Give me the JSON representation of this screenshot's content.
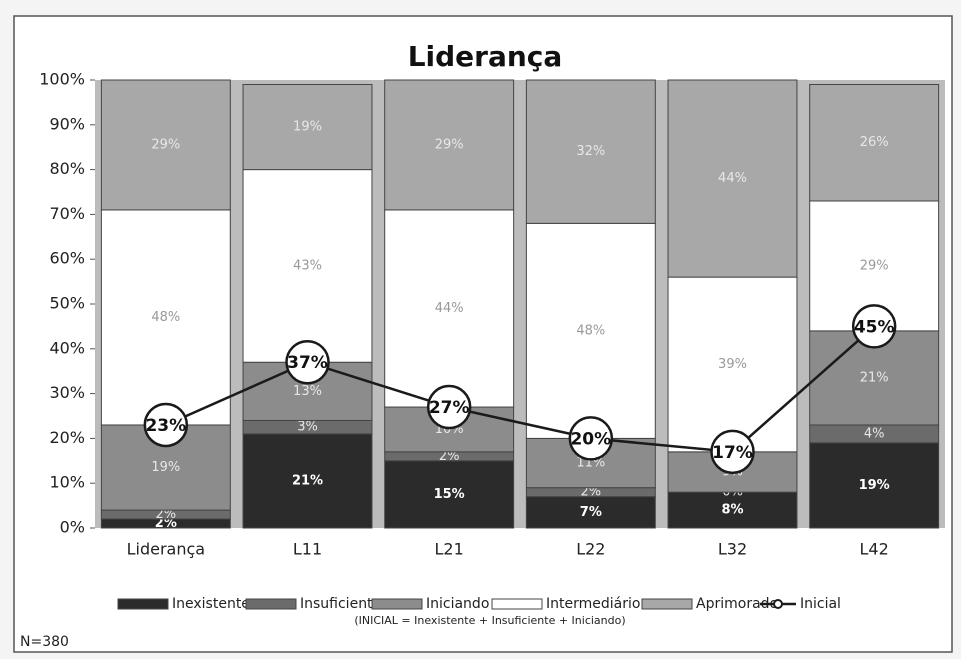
{
  "chart_data": {
    "type": "bar",
    "stacked": true,
    "title": "Liderança",
    "categories": [
      "Liderança",
      "L11",
      "L21",
      "L22",
      "L32",
      "L42"
    ],
    "series": [
      {
        "name": "Inexistente",
        "color": "#2b2b2b",
        "values": [
          2,
          21,
          15,
          7,
          8,
          19
        ],
        "value_labels": [
          "2%",
          "21%",
          "15%",
          "7%",
          "8%",
          "19%"
        ]
      },
      {
        "name": "Insuficiente",
        "color": "#6b6b6b",
        "values": [
          2,
          3,
          2,
          2,
          0,
          4
        ],
        "value_labels": [
          "2%",
          "3%",
          "2%",
          "2%",
          "0%",
          "4%"
        ]
      },
      {
        "name": "Iniciando",
        "color": "#8c8c8c",
        "values": [
          19,
          13,
          10,
          11,
          9,
          21
        ],
        "value_labels": [
          "19%",
          "13%",
          "10%",
          "11%",
          "9%",
          "21%"
        ]
      },
      {
        "name": "Intermediário",
        "color": "#ffffff",
        "values": [
          48,
          43,
          44,
          48,
          39,
          29
        ],
        "value_labels": [
          "48%",
          "43%",
          "44%",
          "48%",
          "39%",
          "29%"
        ]
      },
      {
        "name": "Aprimorado",
        "color": "#a8a8a8",
        "values": [
          29,
          19,
          29,
          32,
          44,
          26
        ],
        "value_labels": [
          "29%",
          "19%",
          "29%",
          "32%",
          "44%",
          "26%"
        ]
      },
      {
        "name": "Inicial",
        "type": "line",
        "color": "#1a1a1a",
        "values": [
          23,
          37,
          27,
          20,
          17,
          45
        ],
        "value_labels": [
          "23%",
          "37%",
          "27%",
          "20%",
          "17%",
          "45%"
        ]
      }
    ],
    "ylim": [
      0,
      100
    ],
    "yticks": [
      {
        "value": 0,
        "label": "0%"
      },
      {
        "value": 10,
        "label": "10%"
      },
      {
        "value": 20,
        "label": "20%"
      },
      {
        "value": 30,
        "label": "30%"
      },
      {
        "value": 40,
        "label": "40%"
      },
      {
        "value": 50,
        "label": "50%"
      },
      {
        "value": 60,
        "label": "60%"
      },
      {
        "value": 70,
        "label": "70%"
      },
      {
        "value": 80,
        "label": "80%"
      },
      {
        "value": 90,
        "label": "90%"
      },
      {
        "value": 100,
        "label": "100%"
      }
    ],
    "legend": "bottom",
    "note": "(INICIAL = Inexistente + Insuficiente + Iniciando)",
    "sample": "N=380"
  }
}
